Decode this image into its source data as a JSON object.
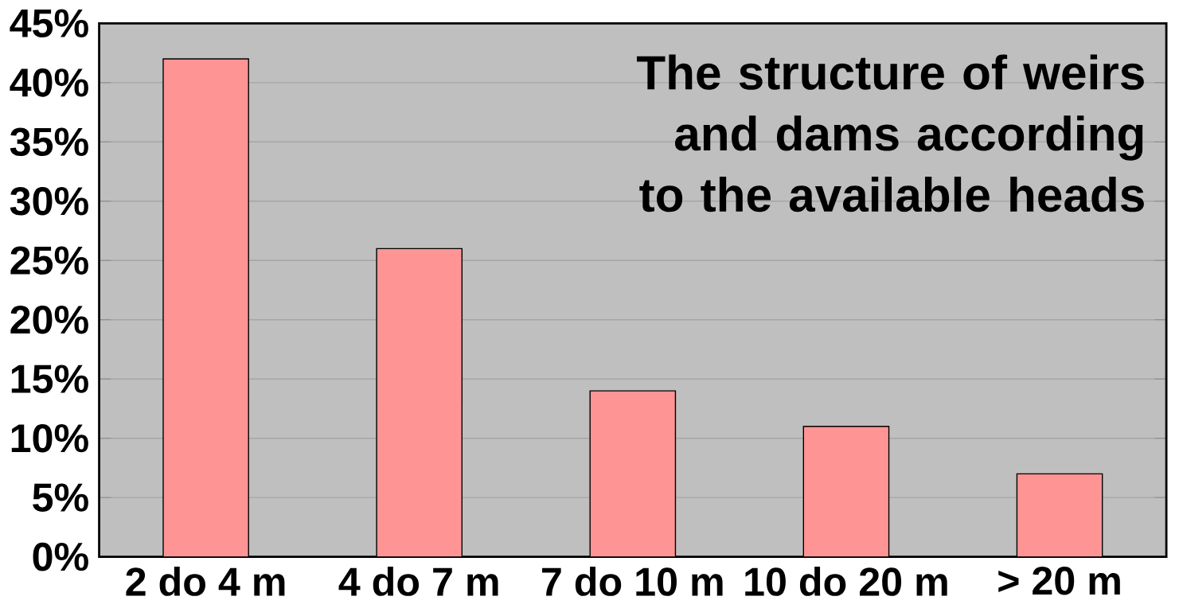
{
  "chart_data": {
    "type": "bar",
    "title": "The structure of weirs and dams according to the available heads",
    "categories": [
      "2 do 4 m",
      "4 do 7 m",
      "7 do 10 m",
      "10 do 20 m",
      "> 20 m"
    ],
    "values": [
      42,
      26,
      14,
      11,
      7
    ],
    "color": "#ff9494",
    "ylim": [
      0,
      45
    ],
    "yticks": [
      {
        "value": 0,
        "label": "0%"
      },
      {
        "value": 5,
        "label": "5%"
      },
      {
        "value": 10,
        "label": "10%"
      },
      {
        "value": 15,
        "label": "15%"
      },
      {
        "value": 20,
        "label": "20%"
      },
      {
        "value": 25,
        "label": "25%"
      },
      {
        "value": 30,
        "label": "30%"
      },
      {
        "value": 35,
        "label": "35%"
      },
      {
        "value": 40,
        "label": "40%"
      },
      {
        "value": 45,
        "label": "45%"
      }
    ],
    "grid": "y"
  }
}
